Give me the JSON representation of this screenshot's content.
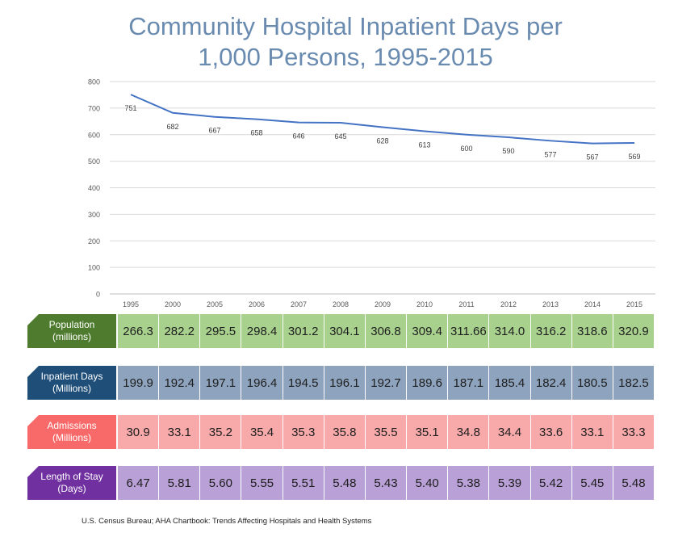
{
  "title_line1": "Community Hospital Inpatient Days per",
  "title_line2": "1,000 Persons, 1995-2015",
  "chart_data": {
    "type": "line",
    "title": "Community Hospital Inpatient Days per 1,000 Persons, 1995-2015",
    "categories": [
      "1995",
      "2000",
      "2005",
      "2006",
      "2007",
      "2008",
      "2009",
      "2010",
      "2011",
      "2012",
      "2013",
      "2014",
      "2015"
    ],
    "values": [
      751,
      682,
      667,
      658,
      646,
      645,
      628,
      613,
      600,
      590,
      577,
      567,
      569
    ],
    "ylim": [
      0,
      800
    ],
    "yticks": [
      0,
      100,
      200,
      300,
      400,
      500,
      600,
      700,
      800
    ],
    "xlabel": "",
    "ylabel": "",
    "line_color": "#4472c4",
    "grid": true
  },
  "rows": [
    {
      "label_line1": "Population",
      "label_line2": "(millions)",
      "label_color": "#4f7b2e",
      "cell_color": "#a9d18e",
      "values": [
        "266.3",
        "282.2",
        "295.5",
        "298.4",
        "301.2",
        "304.1",
        "306.8",
        "309.4",
        "311.66",
        "314.0",
        "316.2",
        "318.6",
        "320.9"
      ]
    },
    {
      "label_line1": "Inpatient Days",
      "label_line2": "(Millions)",
      "label_color": "#1f4e79",
      "cell_color": "#8ea3bd",
      "values": [
        "199.9",
        "192.4",
        "197.1",
        "196.4",
        "194.5",
        "196.1",
        "192.7",
        "189.6",
        "187.1",
        "185.4",
        "182.4",
        "180.5",
        "182.5"
      ]
    },
    {
      "label_line1": "Admissions",
      "label_line2": "(Millions)",
      "label_color": "#f86a6a",
      "cell_color": "#f8a9a9",
      "values": [
        "30.9",
        "33.1",
        "35.2",
        "35.4",
        "35.3",
        "35.8",
        "35.5",
        "35.1",
        "34.8",
        "34.4",
        "33.6",
        "33.1",
        "33.3"
      ]
    },
    {
      "label_line1": "Length of Stay",
      "label_line2": "(Days)",
      "label_color": "#7030a0",
      "cell_color": "#b9a0d6",
      "values": [
        "6.47",
        "5.81",
        "5.60",
        "5.55",
        "5.51",
        "5.48",
        "5.43",
        "5.40",
        "5.38",
        "5.39",
        "5.42",
        "5.45",
        "5.48"
      ]
    }
  ],
  "source": "U.S. Census Bureau; AHA Chartbook: Trends Affecting Hospitals and Health Systems"
}
